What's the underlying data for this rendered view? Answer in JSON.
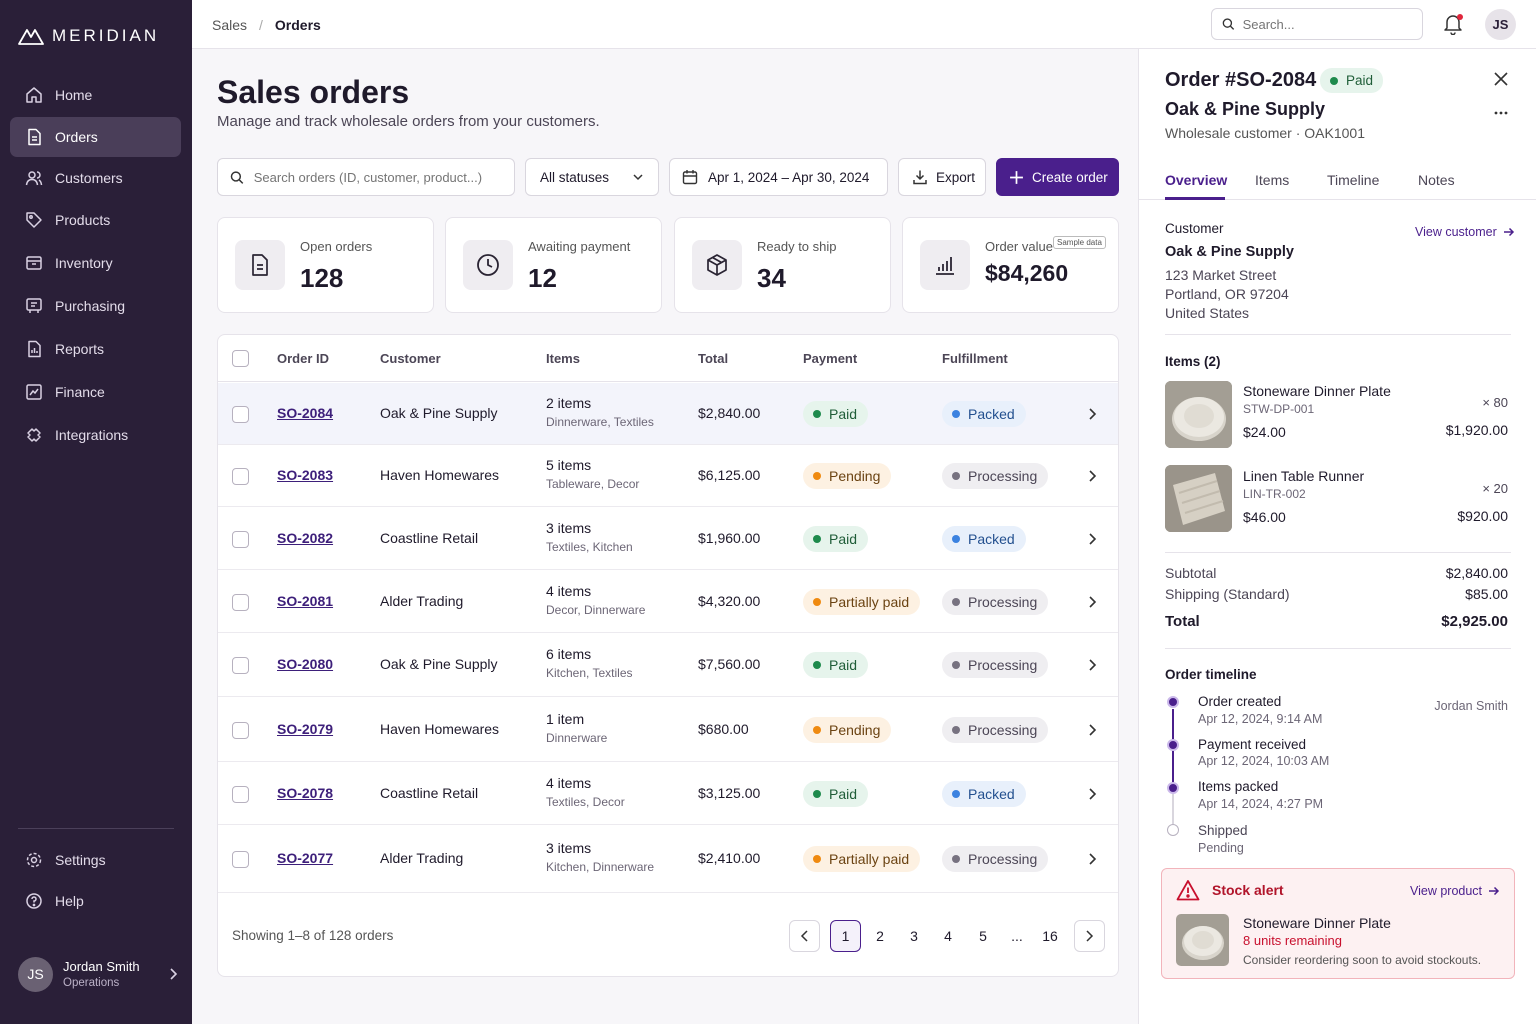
{
  "brand": "MERIDIAN",
  "nav": [
    {
      "label": "Home",
      "icon": "home-icon",
      "active": false
    },
    {
      "label": "Orders",
      "icon": "orders-icon",
      "active": true
    },
    {
      "label": "Customers",
      "icon": "customers-icon",
      "active": false
    },
    {
      "label": "Products",
      "icon": "tag-icon",
      "active": false
    },
    {
      "label": "Inventory",
      "icon": "inventory-icon",
      "active": false
    },
    {
      "label": "Purchasing",
      "icon": "cart-icon",
      "active": false
    },
    {
      "label": "Reports",
      "icon": "reports-icon",
      "active": false
    },
    {
      "label": "Finance",
      "icon": "finance-icon",
      "active": false
    },
    {
      "label": "Integrations",
      "icon": "puzzle-icon",
      "active": false
    }
  ],
  "nav_bottom": [
    {
      "label": "Settings",
      "icon": "gear-icon"
    },
    {
      "label": "Help",
      "icon": "help-icon"
    }
  ],
  "user": {
    "initials": "JS",
    "name": "Jordan Smith",
    "role": "Operations"
  },
  "breadcrumb": {
    "parent": "Sales",
    "sep": "/",
    "current": "Orders"
  },
  "top_search": {
    "placeholder": "Search..."
  },
  "page": {
    "title": "Sales orders",
    "subtitle": "Manage and track wholesale orders from your customers."
  },
  "filters": {
    "search_placeholder": "Search orders (ID, customer, product...)",
    "status": "All statuses",
    "date_range": "Apr 1, 2024 – Apr 30, 2024",
    "export": "Export",
    "create": "Create order"
  },
  "stats": [
    {
      "label": "Open orders",
      "value": "128",
      "icon": "document-icon"
    },
    {
      "label": "Awaiting payment",
      "value": "12",
      "icon": "clock-icon"
    },
    {
      "label": "Ready to ship",
      "value": "34",
      "icon": "box-icon"
    },
    {
      "label": "Order value",
      "value": "$84,260",
      "icon": "bar-chart-icon",
      "tag": "Sample data"
    }
  ],
  "table": {
    "columns": [
      "Order ID",
      "Customer",
      "Items",
      "Total",
      "Payment",
      "Fulfillment"
    ],
    "rows": [
      {
        "id": "SO-2084",
        "customer": "Oak & Pine Supply",
        "items": "2 items",
        "cats": "Dinnerware, Textiles",
        "total": "$2,840.00",
        "payment": "Paid",
        "fulfillment": "Packed"
      },
      {
        "id": "SO-2083",
        "customer": "Haven Homewares",
        "items": "5 items",
        "cats": "Tableware, Decor",
        "total": "$6,125.00",
        "payment": "Pending",
        "fulfillment": "Processing"
      },
      {
        "id": "SO-2082",
        "customer": "Coastline Retail",
        "items": "3 items",
        "cats": "Textiles, Kitchen",
        "total": "$1,960.00",
        "payment": "Paid",
        "fulfillment": "Packed"
      },
      {
        "id": "SO-2081",
        "customer": "Alder Trading",
        "items": "4 items",
        "cats": "Decor, Dinnerware",
        "total": "$4,320.00",
        "payment": "Partially paid",
        "fulfillment": "Processing"
      },
      {
        "id": "SO-2080",
        "customer": "Oak & Pine Supply",
        "items": "6 items",
        "cats": "Kitchen, Textiles",
        "total": "$7,560.00",
        "payment": "Paid",
        "fulfillment": "Processing"
      },
      {
        "id": "SO-2079",
        "customer": "Haven Homewares",
        "items": "1 item",
        "cats": "Dinnerware",
        "total": "$680.00",
        "payment": "Pending",
        "fulfillment": "Processing"
      },
      {
        "id": "SO-2078",
        "customer": "Coastline Retail",
        "items": "4 items",
        "cats": "Textiles, Decor",
        "total": "$3,125.00",
        "payment": "Paid",
        "fulfillment": "Packed"
      },
      {
        "id": "SO-2077",
        "customer": "Alder Trading",
        "items": "3 items",
        "cats": "Kitchen, Dinnerware",
        "total": "$2,410.00",
        "payment": "Partially paid",
        "fulfillment": "Processing"
      }
    ],
    "footer": "Showing 1–8 of 128 orders",
    "pages": [
      "1",
      "2",
      "3",
      "4",
      "5",
      "...",
      "16"
    ]
  },
  "status_colors": {
    "Paid": {
      "bg": "#e6f4ec",
      "dot": "#1e8a4c",
      "fg": "#1f5d38"
    },
    "Pending": {
      "bg": "#fdf1e2",
      "dot": "#ef8a10",
      "fg": "#6b4312"
    },
    "Partially paid": {
      "bg": "#fdf1e2",
      "dot": "#ef8a10",
      "fg": "#6b4312"
    },
    "Packed": {
      "bg": "#e8f0fb",
      "dot": "#3b82e0",
      "fg": "#23508f"
    },
    "Processing": {
      "bg": "#efeef1",
      "dot": "#777280",
      "fg": "#4c4656"
    }
  },
  "panel": {
    "title": "Order #SO-2084",
    "status": "Paid",
    "company": "Oak & Pine Supply",
    "meta": "Wholesale customer · OAK1001",
    "tabs": [
      "Overview",
      "Items",
      "Timeline",
      "Notes"
    ],
    "customer_label": "Customer",
    "view_customer": "View customer",
    "customer_name": "Oak & Pine Supply",
    "address": [
      "123 Market Street",
      "Portland, OR 97204",
      "United States"
    ],
    "items_label": "Items (2)",
    "items": [
      {
        "name": "Stoneware Dinner Plate",
        "sku": "STW-DP-001",
        "price": "$24.00",
        "qty": "× 80",
        "total": "$1,920.00"
      },
      {
        "name": "Linen Table Runner",
        "sku": "LIN-TR-002",
        "price": "$46.00",
        "qty": "× 20",
        "total": "$920.00"
      }
    ],
    "subtotal_label": "Subtotal",
    "subtotal": "$2,840.00",
    "shipping_label": "Shipping (Standard)",
    "shipping": "$85.00",
    "total_label": "Total",
    "total": "$2,925.00",
    "timeline_label": "Order timeline",
    "timeline": [
      {
        "title": "Order created",
        "time": "Apr 12, 2024, 9:14 AM",
        "by": "Jordan Smith",
        "done": true
      },
      {
        "title": "Payment received",
        "time": "Apr 12, 2024, 10:03 AM",
        "by": "",
        "done": true
      },
      {
        "title": "Items packed",
        "time": "Apr 14, 2024, 4:27 PM",
        "by": "",
        "done": true
      },
      {
        "title": "Shipped",
        "time": "Pending",
        "by": "",
        "done": false
      }
    ],
    "alert": {
      "title": "Stock alert",
      "link": "View product",
      "product": "Stoneware Dinner Plate",
      "remaining": "8 units remaining",
      "note": "Consider reordering soon to avoid stockouts."
    }
  }
}
